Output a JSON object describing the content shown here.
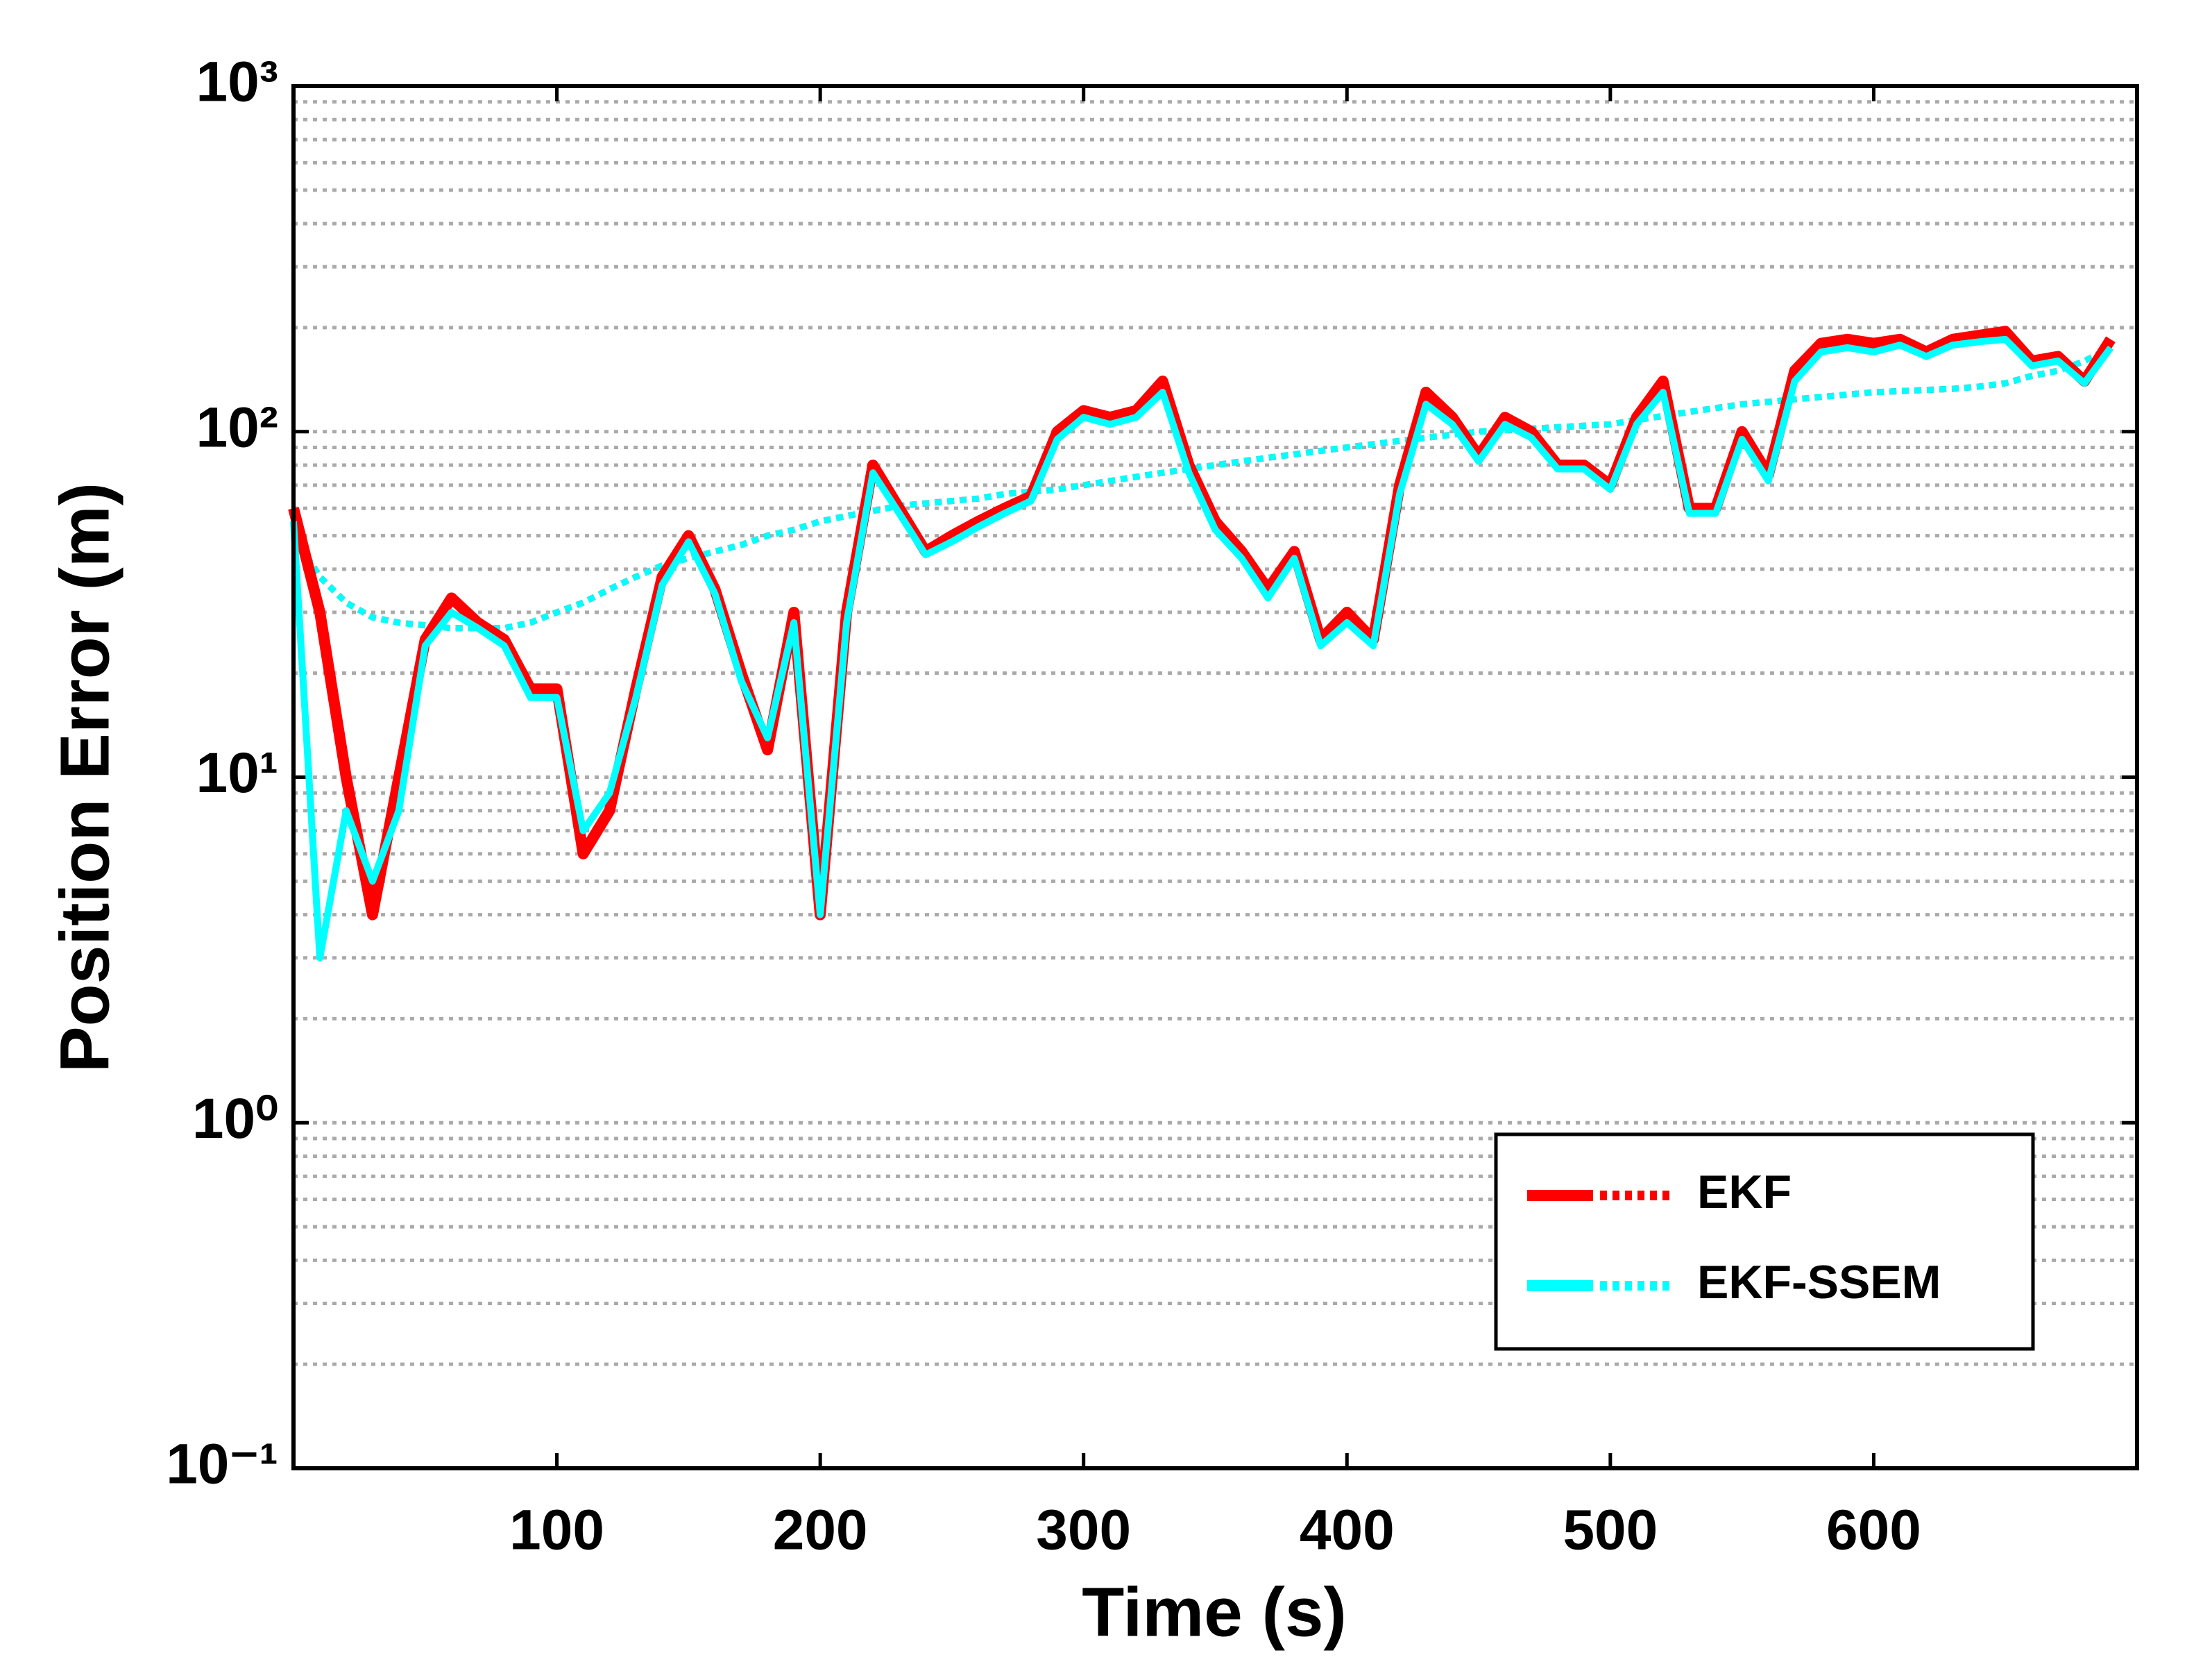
{
  "chart_data": {
    "type": "line",
    "xlabel": "Time (s)",
    "ylabel": "Position Error (m)",
    "xlim": [
      0,
      700
    ],
    "xticks": [
      100,
      200,
      300,
      400,
      500,
      600
    ],
    "ylim": [
      0.1,
      1000
    ],
    "yscale": "log",
    "yticks": [
      {
        "value": 0.1,
        "label": "10⁻¹"
      },
      {
        "value": 1,
        "label": "10⁰"
      },
      {
        "value": 10,
        "label": "10¹"
      },
      {
        "value": 100,
        "label": "10²"
      },
      {
        "value": 1000,
        "label": "10³"
      }
    ],
    "yminorticks": [
      0.2,
      0.3,
      0.4,
      0.5,
      0.6,
      0.7,
      0.8,
      0.9,
      2,
      3,
      4,
      5,
      6,
      7,
      8,
      9,
      20,
      30,
      40,
      50,
      60,
      70,
      80,
      90,
      200,
      300,
      400,
      500,
      600,
      700,
      800,
      900
    ],
    "grid": true,
    "legend": "lower right",
    "x": [
      0,
      10,
      20,
      30,
      40,
      50,
      60,
      70,
      80,
      90,
      100,
      110,
      120,
      130,
      140,
      150,
      160,
      170,
      180,
      190,
      200,
      210,
      220,
      230,
      240,
      250,
      260,
      270,
      280,
      290,
      300,
      310,
      320,
      330,
      340,
      350,
      360,
      370,
      380,
      390,
      400,
      410,
      420,
      430,
      440,
      450,
      460,
      470,
      480,
      490,
      500,
      510,
      520,
      530,
      540,
      550,
      560,
      570,
      580,
      590,
      600,
      610,
      620,
      630,
      640,
      650,
      660,
      670,
      680,
      690
    ],
    "series": [
      {
        "name": "EKF",
        "color": "#ff0000",
        "values": [
          60,
          30,
          10,
          4,
          10,
          25,
          33,
          28,
          25,
          18,
          18,
          6,
          8,
          18,
          38,
          50,
          35,
          20,
          12,
          30,
          4,
          30,
          80,
          60,
          45,
          50,
          55,
          60,
          65,
          100,
          115,
          110,
          115,
          140,
          80,
          55,
          45,
          35,
          45,
          25,
          30,
          25,
          70,
          130,
          110,
          85,
          110,
          100,
          80,
          80,
          70,
          110,
          140,
          60,
          60,
          100,
          75,
          150,
          180,
          185,
          180,
          185,
          170,
          185,
          190,
          195,
          160,
          165,
          140,
          185
        ],
        "trend": [
          50,
          38,
          32,
          29,
          28,
          27.5,
          27,
          27,
          27,
          28,
          30,
          32,
          35,
          38,
          41,
          43,
          45,
          47,
          50,
          52,
          55,
          57,
          59,
          61,
          62,
          63,
          64,
          66,
          67,
          68,
          70,
          72,
          74,
          76,
          78,
          80,
          82,
          84,
          86,
          88,
          90,
          92,
          94,
          96,
          98,
          100,
          101,
          102,
          103,
          104,
          105,
          108,
          111,
          114,
          117,
          120,
          122,
          124,
          126,
          128,
          130,
          131,
          132,
          133,
          135,
          138,
          145,
          150,
          160,
          175
        ]
      },
      {
        "name": "EKF-SSEM",
        "color": "#00ffff",
        "values": [
          55,
          3,
          8,
          5,
          8,
          24,
          30,
          27,
          24,
          17,
          17,
          7,
          9,
          17,
          36,
          48,
          34,
          19,
          13,
          28,
          4,
          28,
          76,
          58,
          44,
          48,
          53,
          58,
          63,
          95,
          110,
          105,
          110,
          130,
          76,
          52,
          43,
          33,
          43,
          24,
          28,
          24,
          66,
          120,
          105,
          82,
          105,
          96,
          78,
          78,
          68,
          105,
          130,
          58,
          58,
          95,
          72,
          140,
          170,
          175,
          170,
          178,
          165,
          178,
          182,
          185,
          155,
          160,
          138,
          175
        ],
        "trend": [
          50,
          38,
          32,
          29,
          28,
          27.5,
          27,
          27,
          27,
          28,
          30,
          32,
          35,
          38,
          41,
          43,
          45,
          47,
          50,
          52,
          55,
          57,
          59,
          61,
          62,
          63,
          64,
          66,
          67,
          68,
          70,
          72,
          74,
          76,
          78,
          80,
          82,
          84,
          86,
          88,
          90,
          92,
          94,
          96,
          98,
          100,
          101,
          102,
          103,
          104,
          105,
          108,
          111,
          114,
          117,
          120,
          122,
          124,
          126,
          128,
          130,
          131,
          132,
          133,
          135,
          138,
          145,
          150,
          160,
          175
        ]
      }
    ]
  }
}
